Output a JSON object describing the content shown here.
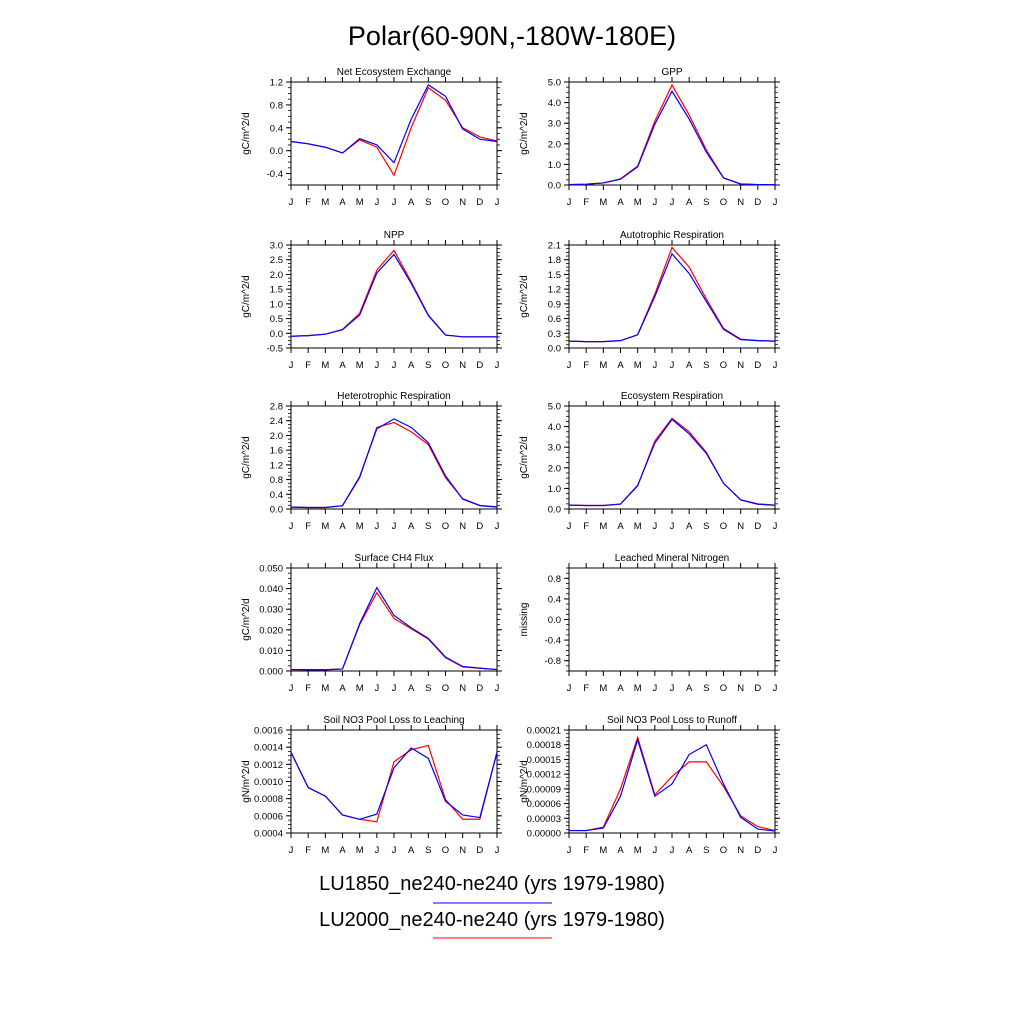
{
  "figure": {
    "title": "Polar(60-90N,-180W-180E)",
    "legend": [
      {
        "label": "LU1850_ne240-ne240 (yrs 1979-1980)",
        "color": "#0000ff"
      },
      {
        "label": "LU2000_ne240-ne240 (yrs 1979-1980)",
        "color": "#ff0000"
      }
    ]
  },
  "chart_data": [
    {
      "type": "line",
      "title": "Net Ecosystem Exchange",
      "ylabel": "gC/m^2/d",
      "categories": [
        "J",
        "F",
        "M",
        "A",
        "M",
        "J",
        "J",
        "A",
        "S",
        "O",
        "N",
        "D",
        "J"
      ],
      "ylim": [
        -0.6,
        1.2
      ],
      "yticks": [
        -0.4,
        0.0,
        0.4,
        0.8,
        1.2
      ],
      "ytick_labels": [
        "-0.4",
        "0.0",
        "0.4",
        "0.8",
        "1.2"
      ],
      "series": [
        {
          "color": "#ff0000",
          "values": [
            0.16,
            0.12,
            0.06,
            -0.04,
            0.19,
            0.06,
            -0.43,
            0.4,
            1.1,
            0.88,
            0.4,
            0.24,
            0.17
          ]
        },
        {
          "color": "#0000ff",
          "values": [
            0.16,
            0.12,
            0.06,
            -0.04,
            0.21,
            0.1,
            -0.21,
            0.55,
            1.15,
            0.95,
            0.38,
            0.2,
            0.16
          ]
        }
      ]
    },
    {
      "type": "line",
      "title": "GPP",
      "ylabel": "gC/m^2/d",
      "categories": [
        "J",
        "F",
        "M",
        "A",
        "M",
        "J",
        "J",
        "A",
        "S",
        "O",
        "N",
        "D",
        "J"
      ],
      "ylim": [
        0.0,
        5.0
      ],
      "yticks": [
        0.0,
        1.0,
        2.0,
        3.0,
        4.0,
        5.0
      ],
      "ytick_labels": [
        "0.0",
        "1.0",
        "2.0",
        "3.0",
        "4.0",
        "5.0"
      ],
      "series": [
        {
          "color": "#ff0000",
          "values": [
            0.02,
            0.04,
            0.1,
            0.3,
            0.92,
            3.1,
            4.85,
            3.4,
            1.7,
            0.35,
            0.05,
            0.02,
            0.02
          ]
        },
        {
          "color": "#0000ff",
          "values": [
            0.02,
            0.04,
            0.1,
            0.28,
            0.88,
            2.95,
            4.55,
            3.2,
            1.6,
            0.34,
            0.05,
            0.02,
            0.02
          ]
        }
      ]
    },
    {
      "type": "line",
      "title": "NPP",
      "ylabel": "gC/m^2/d",
      "categories": [
        "J",
        "F",
        "M",
        "A",
        "M",
        "J",
        "J",
        "A",
        "S",
        "O",
        "N",
        "D",
        "J"
      ],
      "ylim": [
        -0.5,
        3.0
      ],
      "yticks": [
        -0.5,
        0.0,
        0.5,
        1.0,
        1.5,
        2.0,
        2.5,
        3.0
      ],
      "ytick_labels": [
        "-0.5",
        "0.0",
        "0.5",
        "1.0",
        "1.5",
        "2.0",
        "2.5",
        "3.0"
      ],
      "series": [
        {
          "color": "#ff0000",
          "values": [
            -0.1,
            -0.08,
            -0.03,
            0.13,
            0.68,
            2.15,
            2.82,
            1.75,
            0.62,
            -0.06,
            -0.12,
            -0.12,
            -0.12
          ]
        },
        {
          "color": "#0000ff",
          "values": [
            -0.1,
            -0.08,
            -0.03,
            0.12,
            0.62,
            2.05,
            2.68,
            1.7,
            0.6,
            -0.06,
            -0.12,
            -0.12,
            -0.12
          ]
        }
      ]
    },
    {
      "type": "line",
      "title": "Autotrophic Respiration",
      "ylabel": "gC/m^2/d",
      "categories": [
        "J",
        "F",
        "M",
        "A",
        "M",
        "J",
        "J",
        "A",
        "S",
        "O",
        "N",
        "D",
        "J"
      ],
      "ylim": [
        0.0,
        2.1
      ],
      "yticks": [
        0.0,
        0.3,
        0.6,
        0.9,
        1.2,
        1.5,
        1.8,
        2.1
      ],
      "ytick_labels": [
        "0.0",
        "0.3",
        "0.6",
        "0.9",
        "1.2",
        "1.5",
        "1.8",
        "2.1"
      ],
      "series": [
        {
          "color": "#ff0000",
          "values": [
            0.14,
            0.13,
            0.13,
            0.15,
            0.27,
            1.1,
            2.05,
            1.65,
            1.0,
            0.4,
            0.18,
            0.15,
            0.14
          ]
        },
        {
          "color": "#0000ff",
          "values": [
            0.14,
            0.13,
            0.13,
            0.15,
            0.27,
            1.05,
            1.92,
            1.52,
            0.95,
            0.38,
            0.17,
            0.15,
            0.14
          ]
        }
      ]
    },
    {
      "type": "line",
      "title": "Heterotrophic Respiration",
      "ylabel": "gC/m^2/d",
      "categories": [
        "J",
        "F",
        "M",
        "A",
        "M",
        "J",
        "J",
        "A",
        "S",
        "O",
        "N",
        "D",
        "J"
      ],
      "ylim": [
        0.0,
        2.8
      ],
      "yticks": [
        0.0,
        0.4,
        0.8,
        1.2,
        1.6,
        2.0,
        2.4,
        2.8
      ],
      "ytick_labels": [
        "0.0",
        "0.4",
        "0.8",
        "1.2",
        "1.6",
        "2.0",
        "2.4",
        "2.8"
      ],
      "series": [
        {
          "color": "#ff0000",
          "values": [
            0.05,
            0.04,
            0.04,
            0.09,
            0.85,
            2.22,
            2.35,
            2.1,
            1.75,
            0.85,
            0.28,
            0.1,
            0.06
          ]
        },
        {
          "color": "#0000ff",
          "values": [
            0.05,
            0.04,
            0.04,
            0.09,
            0.88,
            2.18,
            2.45,
            2.22,
            1.8,
            0.9,
            0.27,
            0.09,
            0.05
          ]
        }
      ]
    },
    {
      "type": "line",
      "title": "Ecosystem Respiration",
      "ylabel": "gC/m^2/d",
      "categories": [
        "J",
        "F",
        "M",
        "A",
        "M",
        "J",
        "J",
        "A",
        "S",
        "O",
        "N",
        "D",
        "J"
      ],
      "ylim": [
        0.0,
        5.0
      ],
      "yticks": [
        0.0,
        1.0,
        2.0,
        3.0,
        4.0,
        5.0
      ],
      "ytick_labels": [
        "0.0",
        "1.0",
        "2.0",
        "3.0",
        "4.0",
        "5.0"
      ],
      "series": [
        {
          "color": "#ff0000",
          "values": [
            0.19,
            0.17,
            0.17,
            0.24,
            1.12,
            3.3,
            4.4,
            3.75,
            2.75,
            1.25,
            0.45,
            0.25,
            0.19
          ]
        },
        {
          "color": "#0000ff",
          "values": [
            0.19,
            0.17,
            0.17,
            0.24,
            1.15,
            3.2,
            4.35,
            3.65,
            2.7,
            1.25,
            0.44,
            0.23,
            0.18
          ]
        }
      ]
    },
    {
      "type": "line",
      "title": "Surface CH4 Flux",
      "ylabel": "gC/m^2/d",
      "categories": [
        "J",
        "F",
        "M",
        "A",
        "M",
        "J",
        "J",
        "A",
        "S",
        "O",
        "N",
        "D",
        "J"
      ],
      "ylim": [
        0.0,
        0.05
      ],
      "yticks": [
        0.0,
        0.01,
        0.02,
        0.03,
        0.04,
        0.05
      ],
      "ytick_labels": [
        "0.000",
        "0.010",
        "0.020",
        "0.030",
        "0.040",
        "0.050"
      ],
      "series": [
        {
          "color": "#ff0000",
          "values": [
            0.0007,
            0.0006,
            0.0006,
            0.001,
            0.0225,
            0.038,
            0.0255,
            0.0205,
            0.0155,
            0.0065,
            0.002,
            0.0013,
            0.0007
          ]
        },
        {
          "color": "#0000ff",
          "values": [
            0.0007,
            0.0006,
            0.0006,
            0.001,
            0.023,
            0.0405,
            0.027,
            0.021,
            0.0158,
            0.0068,
            0.0022,
            0.0014,
            0.0007
          ]
        }
      ]
    },
    {
      "type": "line",
      "title": "Leached Mineral Nitrogen",
      "ylabel": "missing",
      "categories": [
        "J",
        "F",
        "M",
        "A",
        "M",
        "J",
        "J",
        "A",
        "S",
        "O",
        "N",
        "D",
        "J"
      ],
      "ylim": [
        -1.0,
        1.0
      ],
      "yticks": [
        -0.8,
        -0.4,
        0.0,
        0.4,
        0.8
      ],
      "ytick_labels": [
        "-0.8",
        "-0.4",
        "0.0",
        "0.4",
        "0.8"
      ],
      "series": []
    },
    {
      "type": "line",
      "title": "Soil NO3 Pool Loss to Leaching",
      "ylabel": "gN/m^2/d",
      "categories": [
        "J",
        "F",
        "M",
        "A",
        "M",
        "J",
        "J",
        "A",
        "S",
        "O",
        "N",
        "D",
        "J"
      ],
      "ylim": [
        0.0004,
        0.0016
      ],
      "yticks": [
        0.0004,
        0.0006,
        0.0008,
        0.001,
        0.0012,
        0.0014,
        0.0016
      ],
      "ytick_labels": [
        "0.0004",
        "0.0006",
        "0.0008",
        "0.0010",
        "0.0012",
        "0.0014",
        "0.0016"
      ],
      "series": [
        {
          "color": "#ff0000",
          "values": [
            0.00134,
            0.00093,
            0.00083,
            0.00061,
            0.00056,
            0.00053,
            0.00123,
            0.00137,
            0.00142,
            0.00079,
            0.00056,
            0.00056,
            0.00134
          ]
        },
        {
          "color": "#0000ff",
          "values": [
            0.00134,
            0.00093,
            0.00083,
            0.00061,
            0.00056,
            0.00062,
            0.00116,
            0.00139,
            0.00127,
            0.00077,
            0.00061,
            0.00058,
            0.00134
          ]
        }
      ]
    },
    {
      "type": "line",
      "title": "Soil NO3 Pool Loss to Runoff",
      "ylabel": "gN/m^2/d",
      "categories": [
        "J",
        "F",
        "M",
        "A",
        "M",
        "J",
        "J",
        "A",
        "S",
        "O",
        "N",
        "D",
        "J"
      ],
      "ylim": [
        0.0,
        0.00021
      ],
      "yticks": [
        0.0,
        3e-05,
        6e-05,
        9e-05,
        0.00012,
        0.00015,
        0.00018,
        0.00021
      ],
      "ytick_labels": [
        "0.00000",
        "0.00003",
        "0.00006",
        "0.00009",
        "0.00012",
        "0.00015",
        "0.00018",
        "0.00021"
      ],
      "series": [
        {
          "color": "#ff0000",
          "values": [
            5e-06,
            5e-06,
            1.2e-05,
            9e-05,
            0.000195,
            7.8e-05,
            0.000115,
            0.000145,
            0.000145,
            9.5e-05,
            3.5e-05,
            1.3e-05,
            5e-06
          ]
        },
        {
          "color": "#0000ff",
          "values": [
            5e-06,
            5e-06,
            1e-05,
            7.5e-05,
            0.00019,
            7.5e-05,
            0.0001,
            0.00016,
            0.00018,
            0.0001,
            3.2e-05,
            8e-06,
            4e-06
          ]
        }
      ]
    }
  ]
}
